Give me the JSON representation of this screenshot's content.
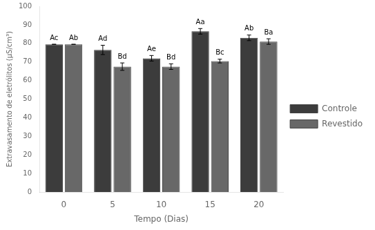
{
  "chart_data": {
    "type": "bar",
    "xlabel": "Tempo (Dias)",
    "ylabel": "Extravasamento de eletrólitos (μS/cm³)",
    "categories": [
      "0",
      "5",
      "10",
      "15",
      "20"
    ],
    "series": [
      {
        "name": "Controle",
        "color": "#3c3c3c",
        "values": [
          79.5,
          76.5,
          72.0,
          86.5,
          83.0
        ],
        "errors": [
          0.0,
          2.5,
          1.5,
          1.5,
          1.5
        ],
        "annotations": [
          "Ac",
          "Ad",
          "Ae",
          "Aa",
          "Ab"
        ]
      },
      {
        "name": "Revestido",
        "color": "#686868",
        "values": [
          79.5,
          67.5,
          67.5,
          70.5,
          81.0
        ],
        "errors": [
          0.0,
          2.0,
          1.5,
          1.0,
          1.5
        ],
        "annotations": [
          "Ab",
          "Bd",
          "Bd",
          "Bc",
          "Ba"
        ]
      }
    ],
    "ylim": [
      0,
      100
    ],
    "yticks": [
      0,
      10,
      20,
      30,
      40,
      50,
      60,
      70,
      80,
      90,
      100
    ],
    "grid": false,
    "legend": "right"
  }
}
